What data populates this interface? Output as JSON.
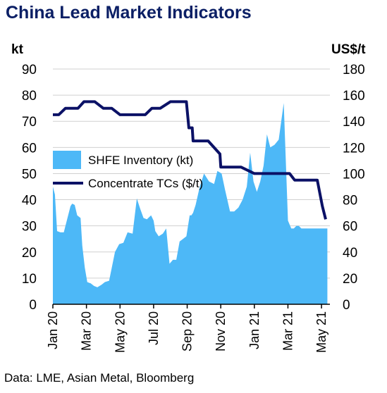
{
  "title": "China Lead Market Indicators",
  "source": "Data: LME, Asian Metal, Bloomberg",
  "colors": {
    "title": "#0b1f65",
    "area": "#4db8f7",
    "line": "#0b1166",
    "grid": "#d0d0d0"
  },
  "chart_data": {
    "type": "area",
    "title": "China Lead Market Indicators",
    "left_unit": "kt",
    "right_unit": "US$/t",
    "left_ylim": [
      0,
      90
    ],
    "left_ticks": [
      "0",
      "10",
      "20",
      "30",
      "40",
      "50",
      "60",
      "70",
      "80",
      "90"
    ],
    "right_ylim": [
      0,
      180
    ],
    "right_ticks": [
      "0",
      "20",
      "40",
      "60",
      "80",
      "100",
      "120",
      "140",
      "160",
      "180"
    ],
    "x_range": [
      0,
      16.5
    ],
    "x_ticks": [
      {
        "label": "Jan 20",
        "x": 0
      },
      {
        "label": "Mar 20",
        "x": 2
      },
      {
        "label": "May 20",
        "x": 4
      },
      {
        "label": "Jul 20",
        "x": 6
      },
      {
        "label": "Sep 20",
        "x": 8
      },
      {
        "label": "Nov 20",
        "x": 10
      },
      {
        "label": "Jan 21",
        "x": 12
      },
      {
        "label": "Mar 21",
        "x": 14
      },
      {
        "label": "May 21",
        "x": 16
      }
    ],
    "grid": "horizontal",
    "legend": "center-left",
    "series": [
      {
        "name": "SHFE Inventory (kt)",
        "axis": "left",
        "kind": "area",
        "x": [
          0,
          0.12,
          0.25,
          0.45,
          0.65,
          1.05,
          1.15,
          1.3,
          1.45,
          1.65,
          1.75,
          1.9,
          2.05,
          2.25,
          2.45,
          2.65,
          2.9,
          3.1,
          3.35,
          3.7,
          3.95,
          4.2,
          4.45,
          4.75,
          5.0,
          5.2,
          5.4,
          5.6,
          5.85,
          6.0,
          6.1,
          6.3,
          6.55,
          6.75,
          6.95,
          7.15,
          7.35,
          7.55,
          7.75,
          7.95,
          8.15,
          8.25,
          8.35,
          8.5,
          8.75,
          9.0,
          9.3,
          9.6,
          9.8,
          10.05,
          10.25,
          10.55,
          10.8,
          11.05,
          11.3,
          11.55,
          11.75,
          11.95,
          12.15,
          12.35,
          12.55,
          12.75,
          12.95,
          13.2,
          13.45,
          13.75,
          14.0,
          14.2,
          14.35,
          14.5,
          14.65,
          14.8,
          14.95,
          15.15,
          15.35,
          15.5,
          15.65,
          15.85,
          16.05,
          16.2,
          16.35
        ],
        "values": [
          45,
          42,
          28,
          27.5,
          27.5,
          37.5,
          38.5,
          38,
          34,
          33,
          22.5,
          14,
          8.5,
          8,
          7,
          6.5,
          7.5,
          8.5,
          9,
          20,
          23,
          23.5,
          27.5,
          27,
          40.5,
          36.5,
          33,
          32.5,
          34,
          32,
          28,
          26,
          27,
          29,
          15.5,
          17,
          17,
          24,
          25,
          26,
          34,
          34,
          35,
          38,
          45,
          50,
          47,
          46,
          51,
          50,
          44,
          35.5,
          35.5,
          37,
          40,
          45,
          58,
          47,
          43,
          47,
          53,
          65,
          60,
          61,
          63,
          77,
          32,
          29,
          29,
          30,
          30,
          29,
          29,
          29,
          29,
          29,
          29,
          29,
          29,
          29,
          29
        ]
      },
      {
        "name": "Concentrate TCs ($/t)",
        "axis": "right",
        "kind": "line",
        "x": [
          0,
          0.35,
          0.75,
          1.5,
          1.85,
          2.5,
          3.0,
          3.5,
          4.0,
          5.0,
          5.5,
          5.9,
          6.4,
          7.0,
          7.45,
          7.95,
          8.1,
          8.3,
          8.35,
          9.25,
          9.95,
          10.0,
          11.0,
          11.2,
          12.0,
          13.0,
          13.9,
          14.1,
          14.4,
          14.95,
          15.15,
          15.4,
          15.6,
          15.75,
          15.9,
          16.05,
          16.25
        ],
        "values": [
          145,
          145,
          150,
          150,
          155,
          155,
          150,
          150,
          145,
          145,
          145,
          150,
          150,
          155,
          155,
          155,
          135,
          135,
          125,
          125,
          115,
          105,
          105,
          105,
          100,
          100,
          100,
          100,
          95,
          95,
          95,
          95,
          95,
          95,
          85,
          75,
          65
        ]
      }
    ]
  }
}
